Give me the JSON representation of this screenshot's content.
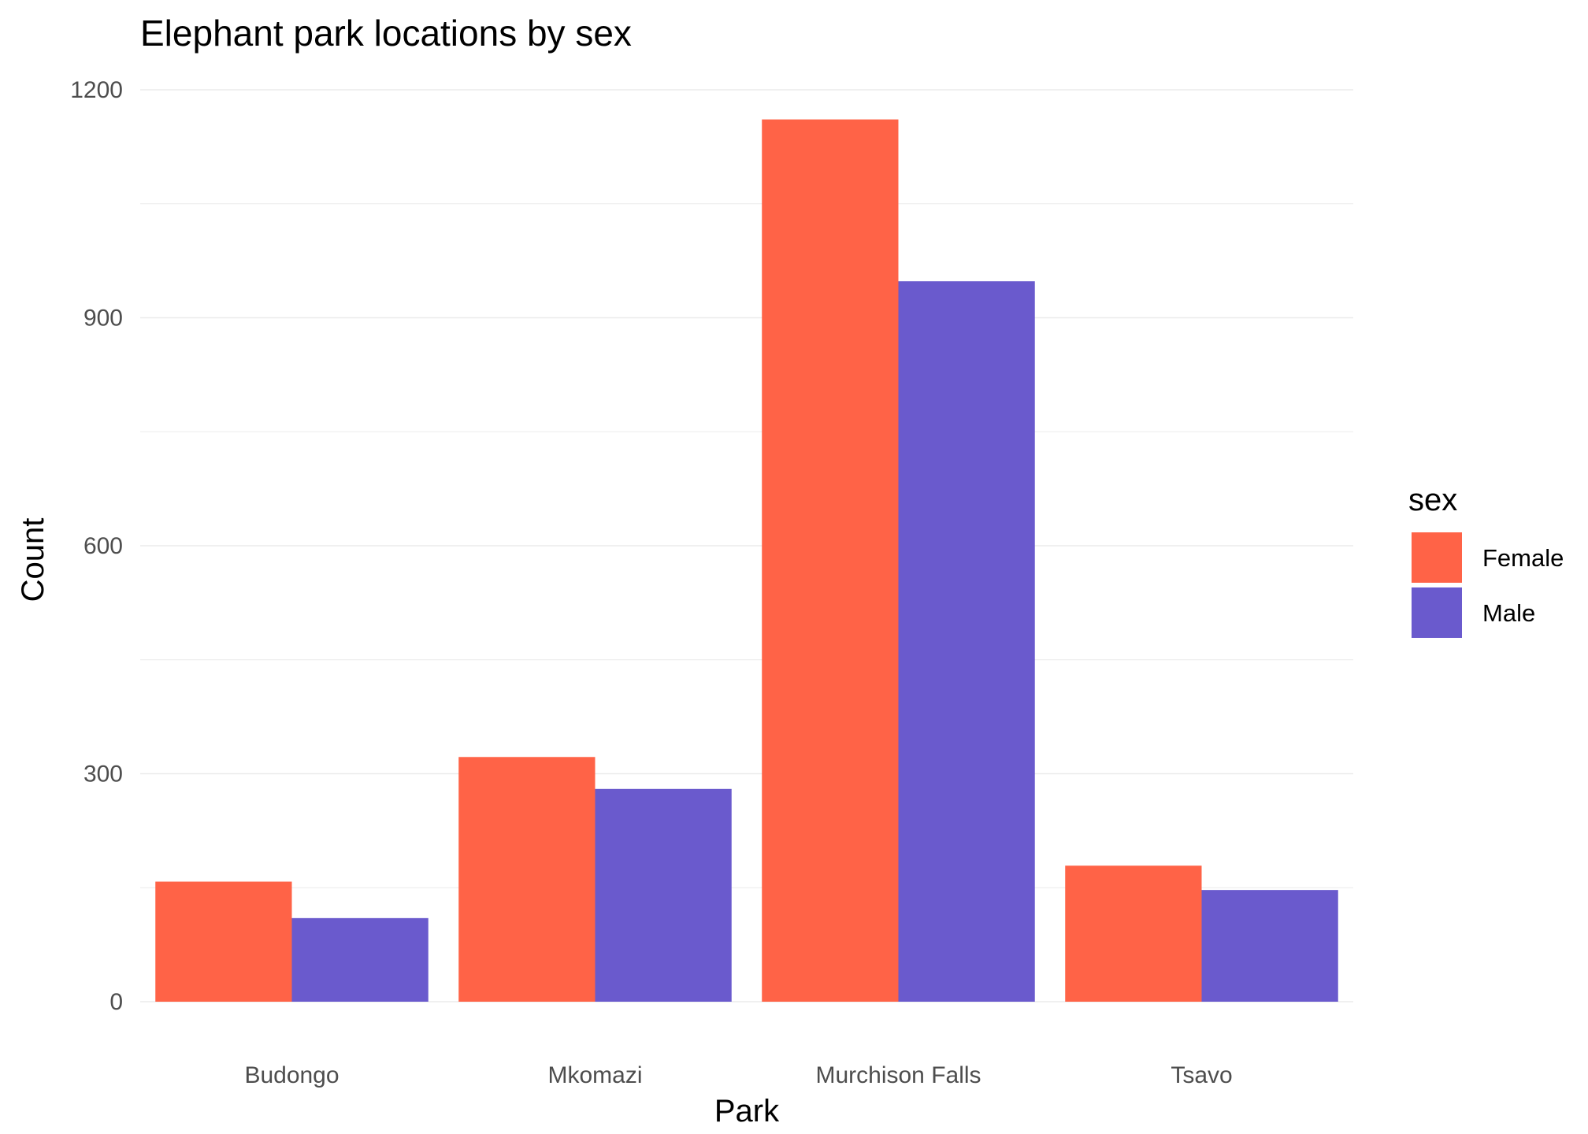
{
  "chart_data": {
    "type": "bar",
    "title": "Elephant park locations by sex",
    "xlabel": "Park",
    "ylabel": "Count",
    "categories": [
      "Budongo",
      "Mkomazi",
      "Murchison Falls",
      "Tsavo"
    ],
    "series": [
      {
        "name": "Female",
        "color": "#FF6347",
        "values": [
          158,
          322,
          1161,
          179
        ]
      },
      {
        "name": "Male",
        "color": "#6A5ACD",
        "values": [
          110,
          280,
          948,
          147
        ]
      }
    ],
    "ylim": [
      0,
      1200
    ],
    "yticks": [
      "0",
      "300",
      "600",
      "900",
      "1200"
    ],
    "grid": true,
    "legend": {
      "title": "sex",
      "position": "right"
    }
  }
}
